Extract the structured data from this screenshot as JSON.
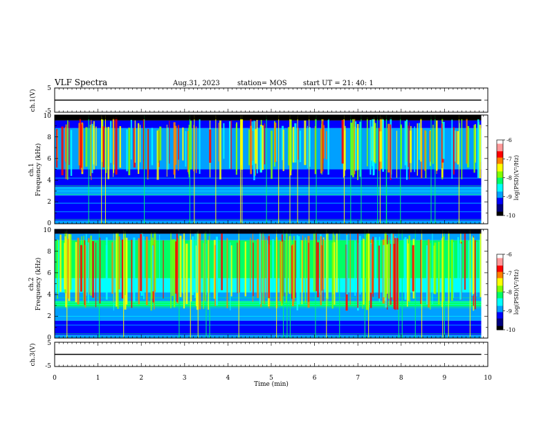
{
  "header": {
    "title": "VLF Spectra",
    "date": "Aug.31, 2023",
    "station": "station= MOS",
    "start_ut": "start UT =   21: 40: 1"
  },
  "colors": {
    "colormap": [
      "#000000",
      "#000080",
      "#0000ff",
      "#00a0ff",
      "#00ffff",
      "#00ff66",
      "#80ff00",
      "#ffff00",
      "#ff8000",
      "#ff0000",
      "#ff9999",
      "#ffffff"
    ],
    "trace": "#000000"
  },
  "chart_data": [
    {
      "type": "line",
      "panel": "ch1-voltage",
      "ylabel": "ch.1(V)",
      "ylim": [
        -5,
        5
      ],
      "yticks": [
        "5",
        "-5"
      ],
      "xlim": [
        0,
        10
      ],
      "series": [
        {
          "x": [
            0,
            9.85
          ],
          "y": [
            0,
            0
          ]
        }
      ]
    },
    {
      "type": "heatmap",
      "panel": "ch1-spectrogram",
      "ylabel": "ch.1\nFrequency (kHz)",
      "ylim": [
        0,
        10
      ],
      "yticks": [
        "0",
        "2",
        "4",
        "6",
        "8",
        "10"
      ],
      "xlim": [
        0,
        10
      ],
      "data_end_min": 9.85,
      "colorbar": {
        "label": "log(PSD)(V²/Hz)",
        "range": [
          -10,
          -6
        ],
        "ticks": [
          "-6",
          "-7",
          "-8",
          "-9",
          "-10"
        ]
      }
    },
    {
      "type": "heatmap",
      "panel": "ch2-spectrogram",
      "ylabel": "ch.2\nFrequency (kHz)",
      "ylim": [
        0,
        10
      ],
      "yticks": [
        "0",
        "2",
        "4",
        "6",
        "8",
        "10"
      ],
      "xlim": [
        0,
        10
      ],
      "data_end_min": 9.85,
      "colorbar": {
        "label": "log(PSD)(V²/Hz)",
        "range": [
          -10,
          -6
        ],
        "ticks": [
          "-6",
          "-7",
          "-8",
          "-9",
          "-10"
        ]
      }
    },
    {
      "type": "line",
      "panel": "ch3-voltage",
      "ylabel": "ch.3(V)",
      "ylim": [
        -5,
        5
      ],
      "yticks": [
        "5",
        "-5"
      ],
      "xlim": [
        0,
        10
      ],
      "series": [
        {
          "x": [
            0,
            9.85
          ],
          "y": [
            0,
            0
          ]
        }
      ],
      "xlabel": "Time  (min)",
      "xticks": [
        "0",
        "1",
        "2",
        "3",
        "4",
        "5",
        "6",
        "7",
        "8",
        "9",
        "10"
      ]
    }
  ]
}
